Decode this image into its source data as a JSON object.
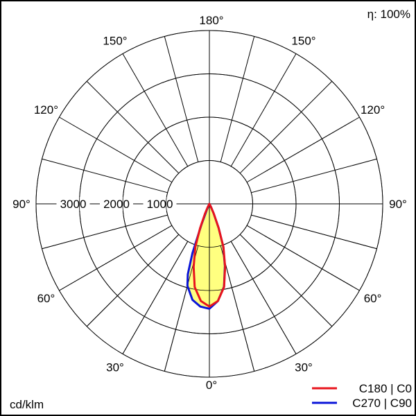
{
  "chart_data": {
    "type": "polar",
    "efficiency_label": "η: 100%",
    "unit_label": "cd/klm",
    "radial_ticks": [
      1000,
      2000,
      3000
    ],
    "radial_max": 4000,
    "angle_labels": [
      "0°",
      "30°",
      "60°",
      "90°",
      "120°",
      "150°",
      "180°"
    ],
    "angle_label_values": [
      0,
      30,
      60,
      90,
      120,
      150,
      180
    ],
    "grid_angle_step": 15,
    "grid": true,
    "legend_placement": "bottom-right",
    "series": [
      {
        "name": "C180 | C0",
        "color": "#e8141c",
        "left": {
          "angles": [
            0,
            5,
            10,
            14,
            18,
            21,
            24,
            27,
            30
          ],
          "values": [
            2370,
            2250,
            1950,
            1500,
            1050,
            600,
            250,
            80,
            0
          ]
        },
        "right": {
          "angles": [
            0,
            5,
            10,
            14,
            18,
            21,
            24,
            27,
            30
          ],
          "values": [
            2370,
            2250,
            1950,
            1500,
            1050,
            600,
            250,
            80,
            0
          ]
        }
      },
      {
        "name": "C270 | C90",
        "color": "#0a14d8",
        "left": {
          "angles": [
            0,
            5,
            10,
            15,
            17,
            19,
            21,
            23,
            25
          ],
          "values": [
            2420,
            2380,
            2250,
            1960,
            1700,
            1200,
            500,
            150,
            0
          ]
        },
        "right": {
          "angles": [
            0,
            5,
            10,
            14,
            18,
            21,
            24,
            27,
            30
          ],
          "values": [
            2420,
            2250,
            1940,
            1480,
            1030,
            590,
            240,
            80,
            0
          ]
        }
      }
    ],
    "fill_color": "#ffff80"
  }
}
